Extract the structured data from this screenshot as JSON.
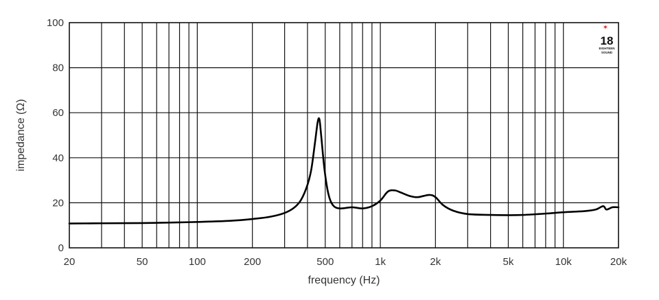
{
  "chart_data": {
    "type": "line",
    "title": "",
    "xlabel": "frequency (Hz)",
    "ylabel": "impedance (Ω)",
    "x_scale": "log",
    "xlim": [
      20,
      20000
    ],
    "ylim": [
      0,
      100
    ],
    "grid": true,
    "x_ticks": [
      {
        "value": 20,
        "label": "20"
      },
      {
        "value": 50,
        "label": "50"
      },
      {
        "value": 100,
        "label": "100"
      },
      {
        "value": 200,
        "label": "200"
      },
      {
        "value": 500,
        "label": "500"
      },
      {
        "value": 1000,
        "label": "1k"
      },
      {
        "value": 2000,
        "label": "2k"
      },
      {
        "value": 5000,
        "label": "5k"
      },
      {
        "value": 10000,
        "label": "10k"
      },
      {
        "value": 20000,
        "label": "20k"
      }
    ],
    "y_ticks": [
      {
        "value": 0,
        "label": "0"
      },
      {
        "value": 20,
        "label": "20"
      },
      {
        "value": 40,
        "label": "40"
      },
      {
        "value": 60,
        "label": "60"
      },
      {
        "value": 80,
        "label": "80"
      },
      {
        "value": 100,
        "label": "100"
      }
    ],
    "series": [
      {
        "color": "#000000",
        "points": [
          [
            20,
            10.8
          ],
          [
            30,
            10.9
          ],
          [
            50,
            11.0
          ],
          [
            80,
            11.3
          ],
          [
            100,
            11.5
          ],
          [
            150,
            12.0
          ],
          [
            200,
            12.8
          ],
          [
            250,
            13.8
          ],
          [
            300,
            15.5
          ],
          [
            340,
            18.0
          ],
          [
            370,
            21.5
          ],
          [
            400,
            28.0
          ],
          [
            420,
            35.0
          ],
          [
            440,
            47.0
          ],
          [
            455,
            56.0
          ],
          [
            465,
            57.0
          ],
          [
            475,
            50.0
          ],
          [
            495,
            35.0
          ],
          [
            520,
            24.0
          ],
          [
            550,
            19.0
          ],
          [
            600,
            17.5
          ],
          [
            700,
            18.0
          ],
          [
            800,
            17.5
          ],
          [
            900,
            18.5
          ],
          [
            1000,
            21.0
          ],
          [
            1100,
            25.0
          ],
          [
            1200,
            25.5
          ],
          [
            1300,
            24.5
          ],
          [
            1450,
            23.0
          ],
          [
            1600,
            22.5
          ],
          [
            1850,
            23.5
          ],
          [
            2000,
            22.5
          ],
          [
            2200,
            19.0
          ],
          [
            2500,
            16.5
          ],
          [
            3000,
            15.0
          ],
          [
            4000,
            14.6
          ],
          [
            5000,
            14.5
          ],
          [
            6000,
            14.6
          ],
          [
            8000,
            15.2
          ],
          [
            10000,
            15.8
          ],
          [
            13000,
            16.3
          ],
          [
            15000,
            17.0
          ],
          [
            16500,
            18.5
          ],
          [
            17200,
            17.0
          ],
          [
            18500,
            18.0
          ],
          [
            20000,
            18.0
          ]
        ]
      }
    ]
  },
  "logo": {
    "text_main": "18",
    "text_line1": "EIGHTEEN",
    "text_line2": "SOUND",
    "star_color": "#d21f1f"
  }
}
